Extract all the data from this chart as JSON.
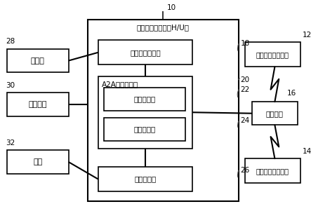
{
  "background": "#ffffff",
  "labels": {
    "num_10": "10",
    "num_12": "12",
    "num_14": "14",
    "num_16": "16",
    "num_18": "18",
    "num_20": "20",
    "num_22": "22",
    "num_24": "24",
    "num_26": "26",
    "num_28": "28",
    "num_30": "30",
    "num_32": "32",
    "main_box": "智能体协作装置（H/U）",
    "speaker": "扬声器",
    "touchpad": "触摸面板",
    "mic": "话筒",
    "audio_ctrl": "声音输出控制部",
    "a2a_ctrl": "A2A协作控制部",
    "agent1": "第一智能体",
    "agent2": "第二智能体",
    "voice_detect": "语音检测部",
    "comm": "通信装置",
    "server1": "第一智能体服务器",
    "server2": "第二智能体服务器"
  },
  "colors": {
    "box_fill": "#ffffff",
    "box_edge": "#000000",
    "line": "#000000",
    "text": "#000000",
    "background": "#ffffff"
  },
  "layout": {
    "fig_w": 4.43,
    "fig_h": 3.01,
    "dpi": 100
  }
}
